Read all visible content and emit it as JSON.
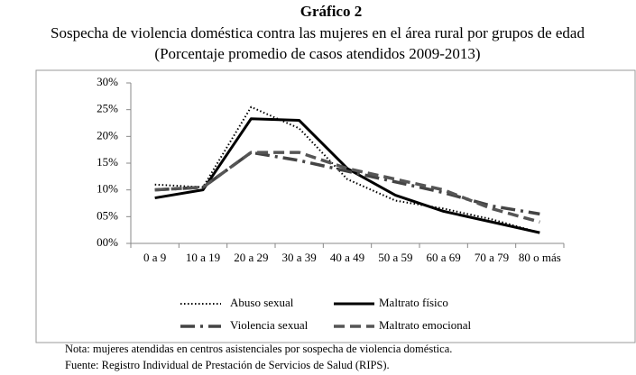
{
  "chart_data": {
    "type": "line",
    "title": "Gráfico 2",
    "subtitle": [
      "Sospecha de violencia doméstica contra las mujeres en el área rural por grupos de edad",
      "(Porcentaje promedio de casos atendidos 2009-2013)"
    ],
    "categories": [
      "0 a 9",
      "10 a 19",
      "20 a 29",
      "30 a 39",
      "40 a 49",
      "50 a 59",
      "60 a 69",
      "70 a 79",
      "80 o más"
    ],
    "series": [
      {
        "name": "Abuso sexual",
        "color": "#000000",
        "style": "dotted",
        "values": [
          11,
          10.5,
          25.5,
          21.5,
          12,
          8,
          6.5,
          4.5,
          2
        ]
      },
      {
        "name": "Maltrato físico",
        "color": "#000000",
        "style": "solid",
        "values": [
          8.5,
          10,
          23.3,
          23,
          14,
          9,
          6,
          4,
          2
        ]
      },
      {
        "name": "Violencia sexual",
        "color": "#444444",
        "style": "dashdot",
        "values": [
          10,
          10.5,
          17,
          15.5,
          13.5,
          11.5,
          9.5,
          7,
          5.5
        ]
      },
      {
        "name": "Maltrato emocional",
        "color": "#555555",
        "style": "dashed",
        "values": [
          10,
          10.5,
          17,
          17,
          14,
          12,
          10,
          6.5,
          4
        ]
      }
    ],
    "ylim": [
      0,
      30
    ],
    "yticks": [
      {
        "value": 0,
        "label": "00%"
      },
      {
        "value": 5,
        "label": "05%"
      },
      {
        "value": 10,
        "label": "10%"
      },
      {
        "value": 15,
        "label": "15%"
      },
      {
        "value": 20,
        "label": "20%"
      },
      {
        "value": 25,
        "label": "25%"
      },
      {
        "value": 30,
        "label": "30%"
      }
    ],
    "legend": "bottom",
    "notes": [
      "Nota: mujeres atendidas en centros asistenciales por sospecha de violencia doméstica.",
      "Fuente: Registro Individual de Prestación de Servicios de Salud (RIPS)."
    ]
  }
}
